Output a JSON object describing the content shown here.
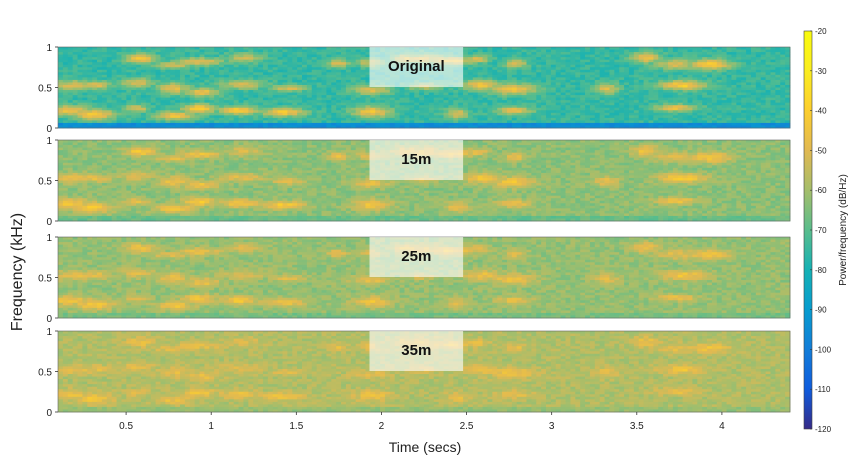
{
  "chart_data": {
    "type": "heatmap",
    "xlabel": "Time (secs)",
    "ylabel": "Frequency (kHz)",
    "colorbar_label": "Power/frequency (dB/Hz)",
    "xlim": [
      0.1,
      4.4
    ],
    "ylim": [
      0,
      1
    ],
    "clim": [
      -120,
      -20
    ],
    "colormap": "parula",
    "x_ticks": [
      0.5,
      1,
      1.5,
      2,
      2.5,
      3,
      3.5,
      4
    ],
    "x_tick_labels": [
      "0.5",
      "1",
      "1.5",
      "2",
      "2.5",
      "3",
      "3.5",
      "4"
    ],
    "y_ticks": [
      0,
      0.5,
      1
    ],
    "y_tick_labels": [
      "0",
      "0.5",
      "1"
    ],
    "colorbar_ticks": [
      -20,
      -30,
      -40,
      -50,
      -60,
      -70,
      -80,
      -90,
      -100,
      -110,
      -120
    ],
    "colorbar_tick_labels": [
      "-20",
      "-30",
      "-40",
      "-50",
      "-60",
      "-70",
      "-80",
      "-90",
      "-100",
      "-110",
      "-120"
    ],
    "panels": [
      {
        "label": "Original",
        "background_db": -75,
        "blob_peak_db": -38,
        "low_band_db": -95
      },
      {
        "label": "15m",
        "background_db": -63,
        "blob_peak_db": -40,
        "low_band_db": -68
      },
      {
        "label": "25m",
        "background_db": -62,
        "blob_peak_db": -42,
        "low_band_db": -66
      },
      {
        "label": "35m",
        "background_db": -58,
        "blob_peak_db": -44,
        "low_band_db": -62
      }
    ]
  }
}
